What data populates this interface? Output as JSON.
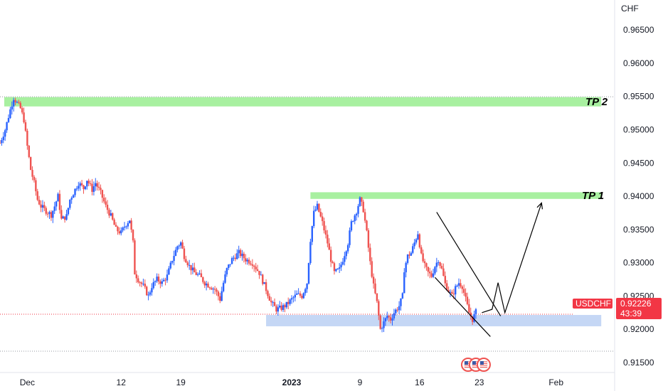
{
  "chart_data": {
    "type": "candlestick",
    "symbol": "USDCHF",
    "currency": "CHF",
    "ylim": [
      0.9135,
      0.9695
    ],
    "y_ticks": [
      "0.96500",
      "0.96000",
      "0.95500",
      "0.95000",
      "0.94500",
      "0.94000",
      "0.93500",
      "0.93000",
      "0.92500",
      "0.92000",
      "0.91500"
    ],
    "x_ticks": [
      {
        "label": "Dec",
        "day": 0,
        "bold": false
      },
      {
        "label": "12",
        "day": 11,
        "bold": false
      },
      {
        "label": "19",
        "day": 18,
        "bold": false
      },
      {
        "label": "2023",
        "day": 31,
        "bold": true
      },
      {
        "label": "9",
        "day": 39,
        "bold": false
      },
      {
        "label": "16",
        "day": 46,
        "bold": false
      },
      {
        "label": "23",
        "day": 53,
        "bold": false
      },
      {
        "label": "Feb",
        "day": 62,
        "bold": false
      }
    ],
    "x_range_days": [
      -3.2,
      67.7
    ],
    "price_path": [
      [
        -3.2,
        0.948
      ],
      [
        -2.6,
        0.95
      ],
      [
        -2.0,
        0.953
      ],
      [
        -1.6,
        0.9548
      ],
      [
        -1.2,
        0.954
      ],
      [
        -0.8,
        0.9532
      ],
      [
        -0.4,
        0.9515
      ],
      [
        0.0,
        0.9475
      ],
      [
        0.4,
        0.944
      ],
      [
        0.8,
        0.942
      ],
      [
        1.2,
        0.9395
      ],
      [
        1.6,
        0.9385
      ],
      [
        2.0,
        0.938
      ],
      [
        2.4,
        0.9376
      ],
      [
        2.8,
        0.9372
      ],
      [
        3.2,
        0.9385
      ],
      [
        3.6,
        0.94
      ],
      [
        4.0,
        0.9365
      ],
      [
        4.6,
        0.937
      ],
      [
        5.0,
        0.9395
      ],
      [
        5.4,
        0.9405
      ],
      [
        6.0,
        0.942
      ],
      [
        6.6,
        0.9412
      ],
      [
        7.0,
        0.9425
      ],
      [
        7.6,
        0.941
      ],
      [
        8.0,
        0.942
      ],
      [
        8.6,
        0.9405
      ],
      [
        9.2,
        0.9385
      ],
      [
        9.8,
        0.937
      ],
      [
        10.4,
        0.935
      ],
      [
        11.0,
        0.9345
      ],
      [
        11.4,
        0.9355
      ],
      [
        12.0,
        0.9365
      ],
      [
        12.4,
        0.933
      ],
      [
        12.6,
        0.9285
      ],
      [
        13.0,
        0.9275
      ],
      [
        13.6,
        0.9265
      ],
      [
        14.2,
        0.925
      ],
      [
        14.6,
        0.9265
      ],
      [
        15.2,
        0.9275
      ],
      [
        15.8,
        0.927
      ],
      [
        16.4,
        0.928
      ],
      [
        17.0,
        0.9305
      ],
      [
        17.6,
        0.9325
      ],
      [
        18.0,
        0.933
      ],
      [
        18.4,
        0.931
      ],
      [
        19.0,
        0.9295
      ],
      [
        19.6,
        0.9285
      ],
      [
        20.2,
        0.928
      ],
      [
        20.8,
        0.927
      ],
      [
        21.4,
        0.9265
      ],
      [
        22.0,
        0.926
      ],
      [
        22.6,
        0.9245
      ],
      [
        23.0,
        0.927
      ],
      [
        23.4,
        0.929
      ],
      [
        24.0,
        0.9305
      ],
      [
        24.8,
        0.9315
      ],
      [
        25.6,
        0.9305
      ],
      [
        26.4,
        0.93
      ],
      [
        27.2,
        0.9285
      ],
      [
        28.0,
        0.926
      ],
      [
        28.6,
        0.924
      ],
      [
        29.2,
        0.923
      ],
      [
        29.8,
        0.9232
      ],
      [
        30.4,
        0.9237
      ],
      [
        31.0,
        0.9245
      ],
      [
        31.6,
        0.9252
      ],
      [
        32.2,
        0.925
      ],
      [
        32.8,
        0.927
      ],
      [
        33.2,
        0.9335
      ],
      [
        33.6,
        0.9375
      ],
      [
        34.0,
        0.9385
      ],
      [
        34.6,
        0.936
      ],
      [
        35.2,
        0.933
      ],
      [
        35.6,
        0.9305
      ],
      [
        36.0,
        0.9285
      ],
      [
        36.6,
        0.929
      ],
      [
        37.0,
        0.9305
      ],
      [
        37.6,
        0.933
      ],
      [
        38.0,
        0.936
      ],
      [
        38.6,
        0.9378
      ],
      [
        39.0,
        0.9395
      ],
      [
        39.4,
        0.938
      ],
      [
        39.8,
        0.9345
      ],
      [
        40.2,
        0.93
      ],
      [
        40.6,
        0.9265
      ],
      [
        41.0,
        0.924
      ],
      [
        41.4,
        0.92
      ],
      [
        41.8,
        0.921
      ],
      [
        42.2,
        0.922
      ],
      [
        42.6,
        0.9215
      ],
      [
        43.0,
        0.9225
      ],
      [
        43.6,
        0.9235
      ],
      [
        44.0,
        0.925
      ],
      [
        44.2,
        0.929
      ],
      [
        44.6,
        0.931
      ],
      [
        45.0,
        0.9315
      ],
      [
        45.4,
        0.933
      ],
      [
        45.8,
        0.9345
      ],
      [
        46.2,
        0.931
      ],
      [
        46.6,
        0.9295
      ],
      [
        47.0,
        0.9285
      ],
      [
        47.4,
        0.928
      ],
      [
        47.8,
        0.9295
      ],
      [
        48.2,
        0.9305
      ],
      [
        48.6,
        0.929
      ],
      [
        49.0,
        0.9268
      ],
      [
        49.4,
        0.9258
      ],
      [
        49.8,
        0.925
      ],
      [
        50.2,
        0.9262
      ],
      [
        50.6,
        0.927
      ],
      [
        51.0,
        0.9265
      ],
      [
        51.4,
        0.9245
      ],
      [
        51.8,
        0.9225
      ],
      [
        52.2,
        0.9215
      ],
      [
        52.6,
        0.9226
      ]
    ],
    "annotations": {
      "tp2": {
        "label": "TP 2",
        "y_low": 0.9535,
        "y_high": 0.9549,
        "x_from_day": -2.7,
        "x_to_day": 67.3
      },
      "tp1": {
        "label": "TP 1",
        "y_low": 0.9396,
        "y_high": 0.9406,
        "x_from_day": 33.2,
        "x_to_day": 67.3
      },
      "support": {
        "y_low": 0.92045,
        "y_high": 0.92215,
        "x_from_day": 28.0,
        "x_to_day": 67.3
      },
      "wedge_upper": [
        [
          48.0,
          0.9376
        ],
        [
          55.5,
          0.922
        ]
      ],
      "wedge_lower": [
        [
          47.8,
          0.9278
        ],
        [
          54.3,
          0.9189
        ]
      ],
      "projection_path": [
        [
          53.3,
          0.9225
        ],
        [
          54.5,
          0.923
        ],
        [
          55.2,
          0.927
        ],
        [
          56.0,
          0.9225
        ],
        [
          60.3,
          0.939
        ]
      ],
      "reference_lines": [
        {
          "y": 0.95495,
          "style": "dotted"
        },
        {
          "y": 0.9167,
          "style": "dotted"
        }
      ],
      "event_markers_day": 52.6
    },
    "last_price": {
      "symbol": "USDCHF",
      "value": "0.92226",
      "countdown": "43:39",
      "y": 0.92226
    }
  },
  "colors": {
    "up": "#2962ff",
    "down": "#ef5350",
    "tp_zone": "#a8f0a0",
    "support_zone": "#c5d7f5",
    "price_tag": "#f23645",
    "grid_text": "#131722"
  },
  "icons": [
    "event-flag-icon",
    "event-flag-icon",
    "event-flag-icon"
  ]
}
